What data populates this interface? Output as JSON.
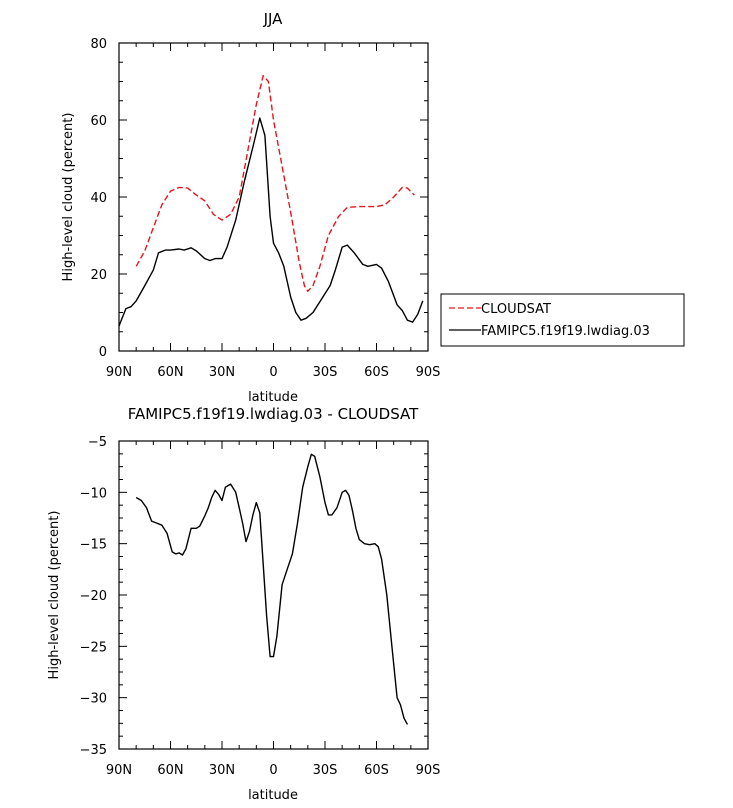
{
  "chart_data": [
    {
      "type": "line",
      "title": "JJA",
      "xlabel": "latitude",
      "ylabel": "High-level cloud (percent)",
      "xlim": [
        90,
        -90
      ],
      "ylim": [
        0,
        80
      ],
      "xticks": [
        {
          "value": 90,
          "label": "90N"
        },
        {
          "value": 60,
          "label": "60N"
        },
        {
          "value": 30,
          "label": "30N"
        },
        {
          "value": 0,
          "label": "0"
        },
        {
          "value": -30,
          "label": "30S"
        },
        {
          "value": -60,
          "label": "60S"
        },
        {
          "value": -90,
          "label": "90S"
        }
      ],
      "yticks": [
        0,
        20,
        40,
        60,
        80
      ],
      "legend_position": "right",
      "series": [
        {
          "name": "CLOUDSAT",
          "color": "#e8141c",
          "dash": "dashed",
          "points": [
            [
              80,
              22
            ],
            [
              75,
              26
            ],
            [
              70,
              32
            ],
            [
              65,
              38
            ],
            [
              60,
              41.5
            ],
            [
              55,
              42.5
            ],
            [
              50,
              42.3
            ],
            [
              45,
              40.5
            ],
            [
              40,
              39
            ],
            [
              35,
              35.5
            ],
            [
              30,
              34
            ],
            [
              25,
              35.5
            ],
            [
              20,
              40
            ],
            [
              15,
              52
            ],
            [
              10,
              64
            ],
            [
              6,
              71.5
            ],
            [
              3,
              70
            ],
            [
              0,
              60
            ],
            [
              -5,
              48
            ],
            [
              -10,
              36
            ],
            [
              -15,
              23
            ],
            [
              -18,
              17
            ],
            [
              -20,
              15.5
            ],
            [
              -23,
              17
            ],
            [
              -27,
              22
            ],
            [
              -32,
              30
            ],
            [
              -38,
              35
            ],
            [
              -43,
              37.3
            ],
            [
              -50,
              37.5
            ],
            [
              -60,
              37.5
            ],
            [
              -65,
              38
            ],
            [
              -70,
              40
            ],
            [
              -75,
              42.5
            ],
            [
              -78,
              42.3
            ],
            [
              -82,
              40.5
            ]
          ]
        },
        {
          "name": "FAMIPC5.f19f19.lwdiag.03",
          "color": "#000000",
          "dash": "solid",
          "points": [
            [
              90,
              6.5
            ],
            [
              86,
              11
            ],
            [
              83,
              11.5
            ],
            [
              80,
              13
            ],
            [
              75,
              17
            ],
            [
              70,
              21
            ],
            [
              67,
              25.5
            ],
            [
              63,
              26.2
            ],
            [
              60,
              26.2
            ],
            [
              55,
              26.5
            ],
            [
              52,
              26.2
            ],
            [
              48,
              26.8
            ],
            [
              45,
              26
            ],
            [
              40,
              24
            ],
            [
              37,
              23.5
            ],
            [
              34,
              24
            ],
            [
              30,
              24
            ],
            [
              27,
              27
            ],
            [
              22,
              34
            ],
            [
              17,
              44
            ],
            [
              12,
              53
            ],
            [
              8,
              60.5
            ],
            [
              5,
              56
            ],
            [
              2,
              35
            ],
            [
              0,
              28
            ],
            [
              -3,
              25.5
            ],
            [
              -6,
              22
            ],
            [
              -10,
              14
            ],
            [
              -13,
              10
            ],
            [
              -16,
              8
            ],
            [
              -19,
              8.5
            ],
            [
              -23,
              10
            ],
            [
              -28,
              13.5
            ],
            [
              -33,
              17
            ],
            [
              -36,
              21
            ],
            [
              -40,
              27
            ],
            [
              -43,
              27.5
            ],
            [
              -47,
              25.5
            ],
            [
              -52,
              22.5
            ],
            [
              -55,
              22
            ],
            [
              -60,
              22.5
            ],
            [
              -63,
              21.5
            ],
            [
              -67,
              18
            ],
            [
              -72,
              12
            ],
            [
              -75,
              10.5
            ],
            [
              -78,
              8
            ],
            [
              -81,
              7.5
            ],
            [
              -84,
              9.5
            ],
            [
              -87,
              13
            ]
          ]
        }
      ]
    },
    {
      "type": "line",
      "title": "FAMIPC5.f19f19.lwdiag.03 - CLOUDSAT",
      "xlabel": "latitude",
      "ylabel": "High-level cloud (percent)",
      "xlim": [
        90,
        -90
      ],
      "ylim": [
        -35,
        -5
      ],
      "xticks": [
        {
          "value": 90,
          "label": "90N"
        },
        {
          "value": 60,
          "label": "60N"
        },
        {
          "value": 30,
          "label": "30N"
        },
        {
          "value": 0,
          "label": "0"
        },
        {
          "value": -30,
          "label": "30S"
        },
        {
          "value": -60,
          "label": "60S"
        },
        {
          "value": -90,
          "label": "90S"
        }
      ],
      "yticks": [
        -35,
        -30,
        -25,
        -20,
        -15,
        -10,
        -5
      ],
      "series": [
        {
          "color": "#000000",
          "dash": "solid",
          "points": [
            [
              80,
              -10.5
            ],
            [
              77,
              -10.8
            ],
            [
              74,
              -11.5
            ],
            [
              71,
              -12.8
            ],
            [
              68,
              -13
            ],
            [
              65,
              -13.2
            ],
            [
              62,
              -14
            ],
            [
              59,
              -15.8
            ],
            [
              57,
              -16
            ],
            [
              55,
              -15.9
            ],
            [
              53,
              -16.1
            ],
            [
              51,
              -15.5
            ],
            [
              48,
              -13.5
            ],
            [
              45,
              -13.5
            ],
            [
              43,
              -13.3
            ],
            [
              40,
              -12.3
            ],
            [
              38,
              -11.5
            ],
            [
              36,
              -10.5
            ],
            [
              34,
              -9.8
            ],
            [
              32,
              -10.2
            ],
            [
              30,
              -10.8
            ],
            [
              28,
              -9.5
            ],
            [
              25,
              -9.2
            ],
            [
              22,
              -10
            ],
            [
              20,
              -11.5
            ],
            [
              18,
              -13
            ],
            [
              16,
              -14.8
            ],
            [
              14,
              -13.8
            ],
            [
              12,
              -12.2
            ],
            [
              10,
              -11
            ],
            [
              8,
              -12
            ],
            [
              6,
              -17
            ],
            [
              4,
              -22
            ],
            [
              2,
              -26
            ],
            [
              0,
              -26
            ],
            [
              -2,
              -24
            ],
            [
              -5,
              -19
            ],
            [
              -8,
              -17.5
            ],
            [
              -11,
              -16
            ],
            [
              -14,
              -13
            ],
            [
              -17,
              -9.5
            ],
            [
              -20,
              -7.5
            ],
            [
              -22,
              -6.3
            ],
            [
              -24,
              -6.5
            ],
            [
              -27,
              -8.5
            ],
            [
              -30,
              -11
            ],
            [
              -32,
              -12.2
            ],
            [
              -34,
              -12.2
            ],
            [
              -37,
              -11.5
            ],
            [
              -40,
              -10
            ],
            [
              -42,
              -9.8
            ],
            [
              -44,
              -10.3
            ],
            [
              -46,
              -11.8
            ],
            [
              -48,
              -13.5
            ],
            [
              -50,
              -14.6
            ],
            [
              -53,
              -15
            ],
            [
              -56,
              -15.1
            ],
            [
              -59,
              -15
            ],
            [
              -61,
              -15.3
            ],
            [
              -63,
              -16.5
            ],
            [
              -66,
              -20
            ],
            [
              -69,
              -25
            ],
            [
              -72,
              -30
            ],
            [
              -74,
              -30.7
            ],
            [
              -76,
              -32
            ],
            [
              -78,
              -32.6
            ]
          ]
        }
      ]
    }
  ]
}
